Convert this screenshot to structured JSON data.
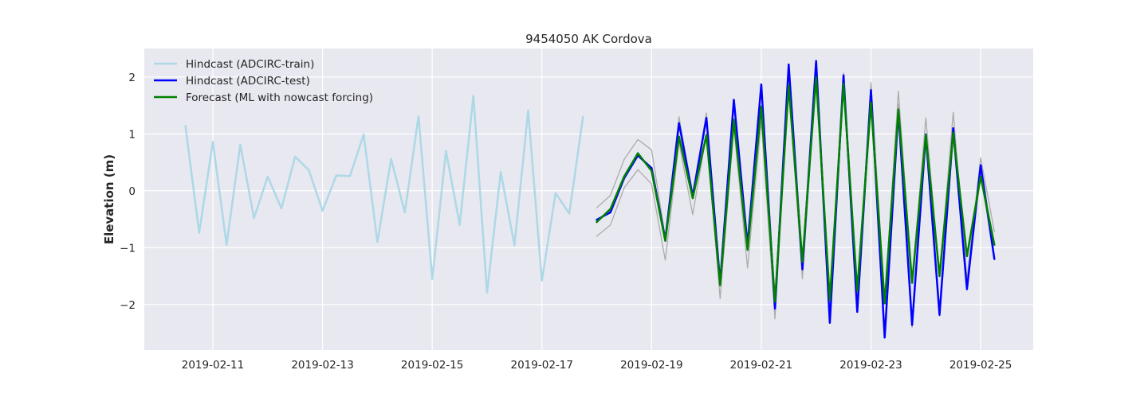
{
  "chart_data": {
    "type": "line",
    "title": "9454050 AK Cordova",
    "xlabel": "",
    "ylabel": "Elevation (m)",
    "x_ticks": [
      "2019-02-11",
      "2019-02-13",
      "2019-02-15",
      "2019-02-17",
      "2019-02-19",
      "2019-02-21",
      "2019-02-23",
      "2019-02-25"
    ],
    "y_ticks": [
      -2,
      -1,
      0,
      1,
      2
    ],
    "y_tick_labels": [
      "−2",
      "−1",
      "0",
      "1",
      "2"
    ],
    "xlim": [
      "2019-02-09T18:00",
      "2019-02-25T23:00"
    ],
    "ylim": [
      -2.8,
      2.5
    ],
    "grid": true,
    "legend": "top-left",
    "background": "#e8e8f0",
    "series": [
      {
        "name": "Hindcast (ADCIRC-train)",
        "color": "#add8e6",
        "width": 2.5,
        "x_start": "2019-02-10T12:00",
        "x_step_hours": 6,
        "values": [
          1.14,
          -0.74,
          0.86,
          -0.95,
          0.81,
          -0.48,
          0.25,
          -0.31,
          0.6,
          0.36,
          -0.35,
          0.27,
          0.26,
          0.99,
          -0.9,
          0.56,
          -0.38,
          1.31,
          -1.55,
          0.7,
          -0.6,
          1.67,
          -1.79,
          0.33,
          -0.96,
          1.41,
          -1.58,
          -0.04,
          -0.4,
          1.3
        ]
      },
      {
        "name": "",
        "color": "#ababab",
        "width": 1.3,
        "x_start": "2019-02-18T00:00",
        "x_step_hours": 6,
        "values": [
          -0.3,
          -0.08,
          0.55,
          0.9,
          0.72,
          -0.82,
          1.3,
          -0.05,
          1.37,
          -1.52,
          1.58,
          -0.9,
          1.86,
          -2.0,
          2.2,
          -1.4,
          2.3,
          -2.2,
          2.07,
          -2.0,
          1.9,
          -1.92,
          1.75,
          -1.6,
          1.28,
          -1.5,
          1.38,
          -1.55,
          0.58,
          -0.72
        ]
      },
      {
        "name": "",
        "color": "#ababab",
        "width": 1.3,
        "x_start": "2019-02-18T00:00",
        "x_step_hours": 6,
        "values": [
          -0.8,
          -0.6,
          0.05,
          0.37,
          0.12,
          -1.22,
          0.85,
          -0.42,
          1.0,
          -1.9,
          1.12,
          -1.36,
          1.22,
          -2.25,
          1.85,
          -1.55,
          2.05,
          -2.3,
          1.85,
          -2.1,
          1.62,
          -2.5,
          1.52,
          -2.4,
          0.85,
          -2.2,
          0.93,
          -1.6,
          0.28,
          -1.18
        ]
      },
      {
        "name": "Hindcast (ADCIRC-test)",
        "color": "#0000ff",
        "width": 2.5,
        "x_start": "2019-02-18T00:00",
        "x_step_hours": 6,
        "values": [
          -0.51,
          -0.38,
          0.22,
          0.62,
          0.4,
          -0.86,
          1.19,
          -0.1,
          1.28,
          -1.62,
          1.6,
          -0.96,
          1.87,
          -2.07,
          2.22,
          -1.38,
          2.28,
          -2.32,
          2.03,
          -2.13,
          1.77,
          -2.58,
          1.4,
          -2.36,
          0.99,
          -2.18,
          1.1,
          -1.73,
          0.45,
          -1.2
        ]
      },
      {
        "name": "Forecast (ML with nowcast forcing)",
        "color": "#008000",
        "width": 2.5,
        "x_start": "2019-02-18T00:00",
        "x_step_hours": 6,
        "values": [
          -0.55,
          -0.32,
          0.25,
          0.66,
          0.35,
          -0.88,
          0.95,
          -0.13,
          0.98,
          -1.66,
          1.25,
          -1.04,
          1.48,
          -1.95,
          1.85,
          -1.25,
          2.0,
          -1.92,
          1.88,
          -1.76,
          1.55,
          -1.98,
          1.43,
          -1.62,
          0.98,
          -1.5,
          1.02,
          -1.15,
          0.25,
          -0.95
        ]
      }
    ]
  }
}
